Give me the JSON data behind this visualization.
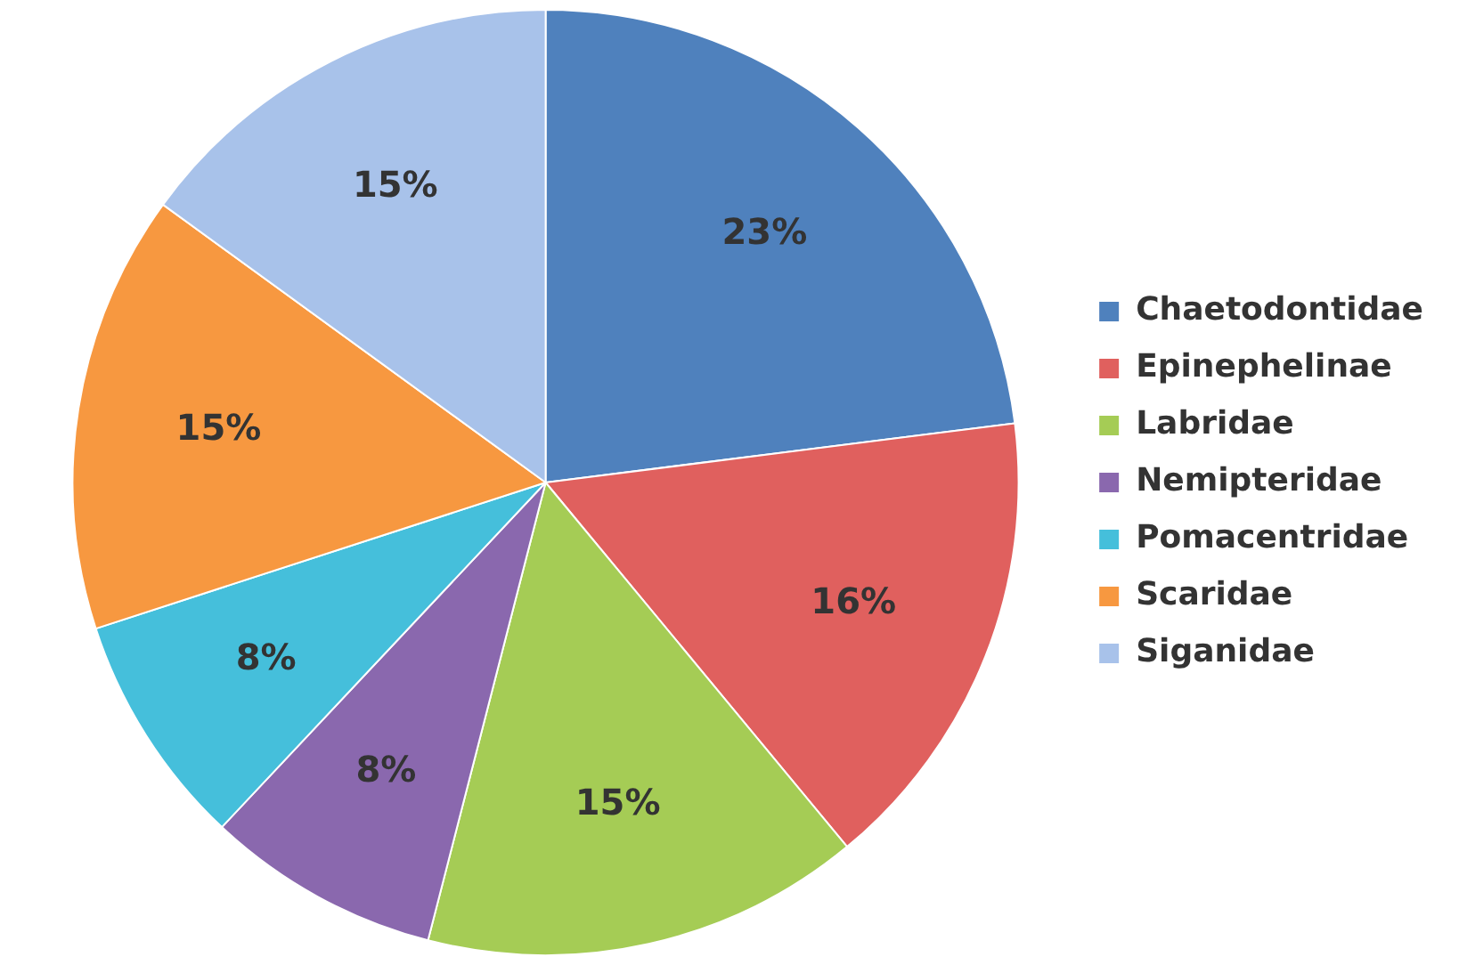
{
  "chart_data": {
    "type": "pie",
    "categories": [
      "Chaetodontidae",
      "Epinephelinae",
      "Labridae",
      "Nemipteridae",
      "Pomacentridae",
      "Scaridae",
      "Siganidae"
    ],
    "values": [
      23,
      16,
      15,
      8,
      8,
      15,
      15
    ],
    "value_labels": [
      "23%",
      "16%",
      "15%",
      "8%",
      "8%",
      "15%",
      "15%"
    ],
    "colors": [
      "#4f81bd",
      "#e0605e",
      "#a5cc55",
      "#8a68ae",
      "#45bfdb",
      "#f79840",
      "#a8c2ea"
    ],
    "legend": "right"
  }
}
